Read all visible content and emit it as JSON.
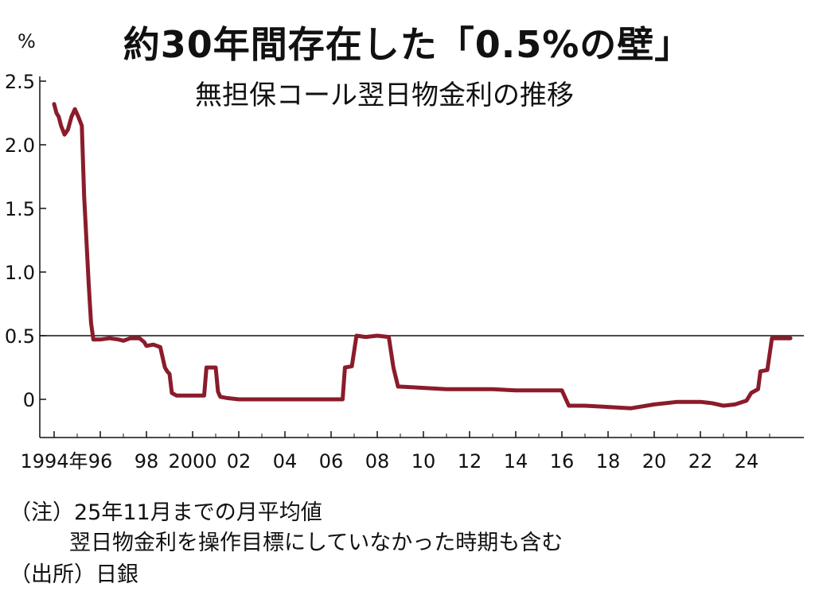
{
  "chart_data": {
    "type": "line",
    "title": "約30年間存在した「0.5%の壁」",
    "subtitle": "無担保コール翌日物金利の推移",
    "unit": "%",
    "ylim": [
      -0.3,
      2.5
    ],
    "yticks": [
      {
        "value": 2.5,
        "label": "2.5"
      },
      {
        "value": 2.0,
        "label": "2.0"
      },
      {
        "value": 1.5,
        "label": "1.5"
      },
      {
        "value": 1.0,
        "label": "1.0"
      },
      {
        "value": 0.5,
        "label": "0.5"
      },
      {
        "value": 0.0,
        "label": "0"
      }
    ],
    "xlim": [
      1994,
      2026.2
    ],
    "xticks": [
      {
        "value": 1994,
        "label": "1994年"
      },
      {
        "value": 1996,
        "label": "96"
      },
      {
        "value": 1998,
        "label": "98"
      },
      {
        "value": 2000,
        "label": "2000"
      },
      {
        "value": 2002,
        "label": "02"
      },
      {
        "value": 2004,
        "label": "04"
      },
      {
        "value": 2006,
        "label": "06"
      },
      {
        "value": 2008,
        "label": "08"
      },
      {
        "value": 2010,
        "label": "10"
      },
      {
        "value": 2012,
        "label": "12"
      },
      {
        "value": 2014,
        "label": "14"
      },
      {
        "value": 2016,
        "label": "16"
      },
      {
        "value": 2018,
        "label": "18"
      },
      {
        "value": 2020,
        "label": "20"
      },
      {
        "value": 2022,
        "label": "22"
      },
      {
        "value": 2024,
        "label": "24"
      }
    ],
    "reference_line": {
      "value": 0.5
    },
    "line_color": "#8b1c2b",
    "series": [
      {
        "x": [
          1994.0,
          1994.1,
          1994.2,
          1994.3,
          1994.45,
          1994.6,
          1994.75,
          1994.9,
          1995.05,
          1995.2,
          1995.3,
          1995.4,
          1995.5,
          1995.6,
          1995.7,
          1995.9,
          1996.0,
          1996.4,
          1996.8,
          1997.0,
          1997.3,
          1997.7,
          1997.9,
          1998.0,
          1998.3,
          1998.6,
          1998.8,
          1998.9,
          1999.0,
          1999.1,
          1999.3,
          2000.0,
          2000.5,
          2000.6,
          2000.7,
          2001.0,
          2001.1,
          2001.2,
          2001.5,
          2002.0,
          2006.0,
          2006.5,
          2006.6,
          2006.9,
          2007.1,
          2007.5,
          2008.0,
          2008.5,
          2008.7,
          2008.9,
          2009.0,
          2010.0,
          2011.0,
          2012.0,
          2013.0,
          2014.0,
          2015.0,
          2016.0,
          2016.1,
          2016.3,
          2017.0,
          2018.0,
          2019.0,
          2020.0,
          2021.0,
          2022.0,
          2022.5,
          2023.0,
          2023.5,
          2024.0,
          2024.2,
          2024.5,
          2024.6,
          2024.9,
          2025.1,
          2025.9
        ],
        "y": [
          2.32,
          2.25,
          2.22,
          2.15,
          2.08,
          2.12,
          2.22,
          2.28,
          2.22,
          2.15,
          1.6,
          1.25,
          0.9,
          0.6,
          0.47,
          0.47,
          0.47,
          0.48,
          0.47,
          0.46,
          0.48,
          0.48,
          0.45,
          0.42,
          0.43,
          0.41,
          0.25,
          0.22,
          0.2,
          0.05,
          0.03,
          0.03,
          0.03,
          0.25,
          0.25,
          0.25,
          0.06,
          0.02,
          0.01,
          0.0,
          0.0,
          0.0,
          0.25,
          0.26,
          0.5,
          0.49,
          0.5,
          0.49,
          0.25,
          0.1,
          0.1,
          0.09,
          0.08,
          0.08,
          0.08,
          0.07,
          0.07,
          0.07,
          0.03,
          -0.05,
          -0.05,
          -0.06,
          -0.07,
          -0.04,
          -0.02,
          -0.02,
          -0.03,
          -0.05,
          -0.04,
          -0.01,
          0.05,
          0.08,
          0.22,
          0.23,
          0.48,
          0.48
        ]
      }
    ]
  },
  "notes": {
    "note1": "（注）25年11月までの月平均値",
    "note2": "翌日物金利を操作目標にしていなかった時期も含む",
    "note3": "（出所）日銀"
  }
}
